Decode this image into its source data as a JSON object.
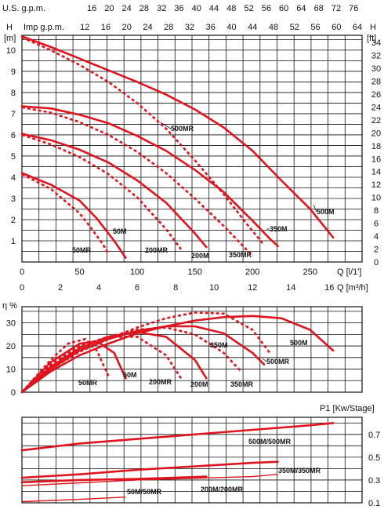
{
  "chart_data": [
    {
      "type": "line",
      "id": "head",
      "axis_top_label": "U.S. g.p.m.",
      "axis_top_ticks": [
        "16",
        "20",
        "24",
        "28",
        "32",
        "36",
        "40",
        "44",
        "48",
        "52",
        "56",
        "60",
        "64",
        "68",
        "72",
        "76"
      ],
      "axis_top_values": [
        16,
        20,
        24,
        28,
        32,
        36,
        40,
        44,
        48,
        52,
        56,
        60,
        64,
        68,
        72,
        76
      ],
      "axis_imp_label": "Imp  g.p.m.",
      "axis_imp_ticks": [
        "12",
        "16",
        "20",
        "24",
        "28",
        "32",
        "36",
        "40",
        "44",
        "48",
        "52",
        "56",
        "60",
        "64"
      ],
      "axis_imp_values": [
        12,
        16,
        20,
        24,
        28,
        32,
        36,
        40,
        44,
        48,
        52,
        56,
        60,
        64
      ],
      "ylabel_letter": "H",
      "ylabel_unit": "[m]",
      "yright_letter": "H",
      "yright_unit": "[ft]",
      "ylim": [
        0,
        10.7
      ],
      "yticks": [
        "1",
        "2",
        "3",
        "4",
        "5",
        "6",
        "7",
        "8",
        "9",
        "10"
      ],
      "yticks_values": [
        1,
        2,
        3,
        4,
        5,
        6,
        7,
        8,
        9,
        10
      ],
      "ft_ticks": [
        "0",
        "2",
        "4",
        "6",
        "8",
        "10",
        "12",
        "14",
        "16",
        "18",
        "20",
        "22",
        "24",
        "26",
        "28",
        "30",
        "32",
        "34"
      ],
      "ft_values": [
        0,
        2,
        4,
        6,
        8,
        10,
        12,
        14,
        16,
        18,
        20,
        22,
        24,
        26,
        28,
        30,
        32,
        34
      ],
      "xlim": [
        0,
        295
      ],
      "xlabel_lmin": "Q [l/1']",
      "xticks_lmin": [
        "0",
        "50",
        "100",
        "150",
        "200",
        "250"
      ],
      "xticks_lmin_values": [
        0,
        50,
        100,
        150,
        200,
        250
      ],
      "xlabel_m3h": "Q [m³/h]",
      "xticks_m3h": [
        "0",
        "2",
        "4",
        "6",
        "8",
        "10",
        "12",
        "14",
        "16"
      ],
      "xticks_m3h_values": [
        0,
        2,
        4,
        6,
        8,
        10,
        12,
        14,
        16
      ],
      "series": [
        {
          "name": "500M",
          "style": "solid",
          "x": [
            0,
            25,
            50,
            75,
            100,
            125,
            150,
            175,
            200,
            225,
            250,
            270
          ],
          "y": [
            10.65,
            10.15,
            9.6,
            9.05,
            8.5,
            7.9,
            7.2,
            6.35,
            5.25,
            3.85,
            2.5,
            1.15
          ]
        },
        {
          "name": "500MR",
          "style": "dash",
          "x": [
            0,
            25,
            50,
            75,
            100,
            125,
            150,
            175,
            195,
            210
          ],
          "y": [
            10.6,
            10.0,
            9.3,
            8.5,
            7.5,
            6.3,
            4.8,
            3.2,
            1.8,
            0.8
          ]
        },
        {
          "name": "350M",
          "style": "solid",
          "x": [
            0,
            25,
            50,
            75,
            100,
            125,
            150,
            175,
            200,
            215,
            222
          ],
          "y": [
            7.35,
            7.25,
            6.95,
            6.55,
            5.95,
            5.25,
            4.35,
            3.3,
            1.95,
            1.1,
            0.75
          ]
        },
        {
          "name": "350MR",
          "style": "dash",
          "x": [
            0,
            25,
            50,
            75,
            100,
            125,
            150,
            175,
            190,
            200
          ],
          "y": [
            7.3,
            7.05,
            6.6,
            6.0,
            5.2,
            4.2,
            3.0,
            1.7,
            0.85,
            0.3
          ]
        },
        {
          "name": "200M",
          "style": "solid",
          "x": [
            0,
            25,
            50,
            75,
            100,
            125,
            150,
            160
          ],
          "y": [
            6.05,
            5.75,
            5.3,
            4.7,
            3.85,
            2.8,
            1.35,
            0.7
          ]
        },
        {
          "name": "200MR",
          "style": "dash",
          "x": [
            0,
            25,
            50,
            75,
            100,
            125,
            138
          ],
          "y": [
            6.0,
            5.55,
            4.95,
            4.15,
            3.05,
            1.55,
            0.6
          ]
        },
        {
          "name": "50M",
          "style": "solid",
          "x": [
            0,
            25,
            50,
            65,
            80,
            90
          ],
          "y": [
            4.2,
            3.65,
            2.9,
            2.05,
            1.0,
            0.2
          ]
        },
        {
          "name": "50MR",
          "style": "dash",
          "x": [
            0,
            25,
            50,
            60,
            70,
            75
          ],
          "y": [
            4.15,
            3.45,
            2.3,
            1.6,
            0.85,
            0.4
          ]
        }
      ]
    },
    {
      "type": "line",
      "id": "efficiency",
      "ylabel": "η %",
      "ylim": [
        0,
        37
      ],
      "yticks": [
        "0",
        "10",
        "20",
        "30"
      ],
      "yticks_values": [
        0,
        10,
        20,
        30
      ],
      "xlim": [
        0,
        295
      ],
      "series": [
        {
          "name": "500M",
          "style": "solid",
          "x": [
            0,
            25,
            50,
            75,
            100,
            125,
            150,
            175,
            200,
            225,
            250,
            270
          ],
          "y": [
            0,
            9,
            16,
            21,
            25.5,
            28.5,
            31,
            32.5,
            33,
            32,
            27,
            18
          ]
        },
        {
          "name": "500MR",
          "style": "dash",
          "x": [
            0,
            25,
            50,
            75,
            100,
            125,
            150,
            175,
            200,
            215
          ],
          "y": [
            0,
            10,
            17.5,
            23,
            28,
            32,
            34.5,
            34,
            27,
            17
          ]
        },
        {
          "name": "350M",
          "style": "solid",
          "x": [
            0,
            25,
            50,
            75,
            100,
            125,
            150,
            175,
            200,
            210
          ],
          "y": [
            0,
            10,
            18,
            23,
            26.5,
            28.5,
            28.5,
            25.5,
            17,
            12
          ]
        },
        {
          "name": "350MR",
          "style": "dash",
          "x": [
            0,
            25,
            50,
            75,
            100,
            125,
            150,
            175,
            190
          ],
          "y": [
            0,
            11,
            19,
            24,
            27,
            28,
            25,
            17,
            9
          ]
        },
        {
          "name": "200M",
          "style": "solid",
          "x": [
            0,
            25,
            50,
            75,
            100,
            125,
            150,
            160
          ],
          "y": [
            0,
            11,
            19,
            24,
            26,
            24,
            14,
            6
          ]
        },
        {
          "name": "200MR",
          "style": "dash",
          "x": [
            0,
            25,
            50,
            75,
            100,
            125,
            138
          ],
          "y": [
            0,
            12,
            20,
            24,
            24,
            16,
            6
          ]
        },
        {
          "name": "50M",
          "style": "solid",
          "x": [
            0,
            25,
            50,
            65,
            80,
            90
          ],
          "y": [
            0,
            13,
            21,
            22,
            17,
            6
          ]
        },
        {
          "name": "50MR",
          "style": "dash",
          "x": [
            0,
            25,
            40,
            55,
            65,
            75
          ],
          "y": [
            0,
            14,
            21,
            23,
            18,
            7
          ]
        }
      ]
    },
    {
      "type": "line",
      "id": "power",
      "ylabel": "P1 [Kw/Stage]",
      "ylim": [
        0.1,
        0.85
      ],
      "yticks": [
        "0.1",
        "0.3",
        "0.5",
        "0.7"
      ],
      "yticks_values": [
        0.1,
        0.3,
        0.5,
        0.7
      ],
      "xlim": [
        0,
        295
      ],
      "series": [
        {
          "name": "500M/500MR",
          "style": "solid",
          "x": [
            0,
            50,
            100,
            150,
            200,
            250,
            270
          ],
          "y": [
            0.56,
            0.62,
            0.66,
            0.7,
            0.74,
            0.78,
            0.8
          ]
        },
        {
          "name": "350M/350MR",
          "style": "solid",
          "x": [
            0,
            50,
            100,
            150,
            200,
            222
          ],
          "y": [
            0.32,
            0.35,
            0.39,
            0.42,
            0.45,
            0.46
          ]
        },
        {
          "name": "200M/200MR",
          "style": "solid",
          "x": [
            0,
            50,
            100,
            160
          ],
          "y": [
            0.28,
            0.3,
            0.31,
            0.33
          ]
        },
        {
          "name": "350M/350MR",
          "style": "thin",
          "x": [
            0,
            100,
            200,
            222
          ],
          "y": [
            0.25,
            0.3,
            0.33,
            0.35
          ]
        },
        {
          "name": "50M/50MR",
          "style": "thin",
          "x": [
            0,
            50,
            90
          ],
          "y": [
            0.11,
            0.13,
            0.15
          ]
        }
      ]
    }
  ],
  "curve_labels_head": [
    "500MR",
    "500M",
    "350M",
    "50M",
    "50MR",
    "200MR",
    "200M",
    "350MR"
  ],
  "curve_labels_eff": [
    "500M",
    "350M",
    "500MR",
    "50M",
    "50MR",
    "200MR",
    "200M",
    "350MR"
  ],
  "curve_labels_pow": [
    "500M/500MR",
    "350M/350MR",
    "200M/200MR",
    "50M/50MR"
  ]
}
